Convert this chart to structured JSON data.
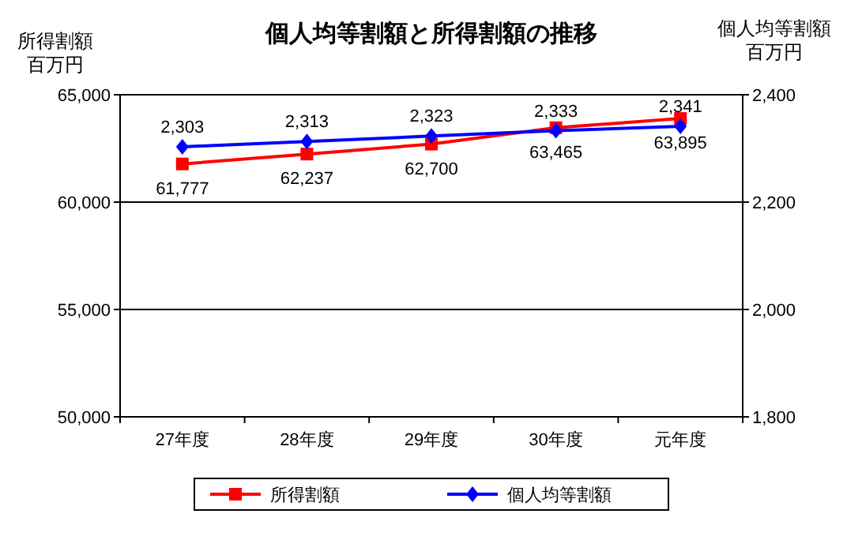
{
  "chart_data": {
    "type": "line",
    "title": "個人均等割額と所得割額の推移",
    "ylabel": "所得割額",
    "y2label": "個人均等割額",
    "annotations": [
      "百万円",
      "百万円"
    ],
    "categories": [
      "27年度",
      "28年度",
      "29年度",
      "30年度",
      "元年度"
    ],
    "series": [
      {
        "name": "所得割額",
        "color": "#ff0000",
        "marker": "square",
        "values": [
          61777,
          62237,
          62700,
          63465,
          63895
        ],
        "value_labels": [
          "61,777",
          "62,237",
          "62,700",
          "63,465",
          "63,895"
        ]
      },
      {
        "name": "個人均等割額",
        "color": "#0000ff",
        "marker": "diamond",
        "axis": "y2",
        "values": [
          2303,
          2313,
          2323,
          2333,
          2341
        ],
        "value_labels": [
          "2,303",
          "2,313",
          "2,323",
          "2,333",
          "2,341"
        ]
      }
    ],
    "ylim": [
      50000,
      65000
    ],
    "yticks": [
      {
        "value": 50000,
        "label": "50,000"
      },
      {
        "value": 55000,
        "label": "55,000"
      },
      {
        "value": 60000,
        "label": "60,000"
      },
      {
        "value": 65000,
        "label": "65,000"
      }
    ],
    "y2lim": [
      1800,
      2400
    ],
    "y2ticks": [
      {
        "value": 1800,
        "label": "1,800"
      },
      {
        "value": 2000,
        "label": "2,000"
      },
      {
        "value": 2200,
        "label": "2,200"
      },
      {
        "value": 2400,
        "label": "2,400"
      }
    ],
    "grid": "y",
    "legend": "bottom",
    "line_style": "solid"
  }
}
